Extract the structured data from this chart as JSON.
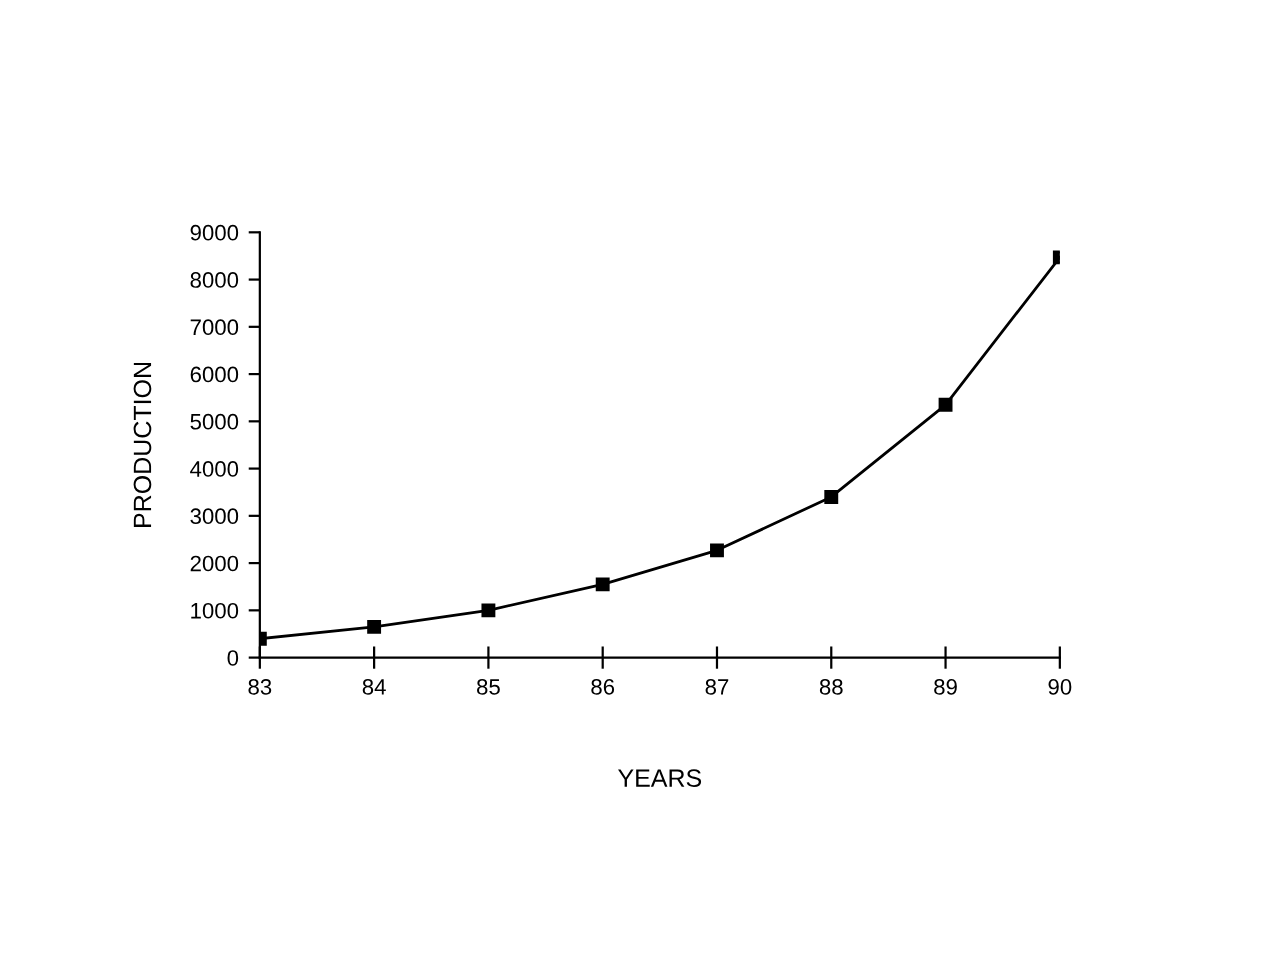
{
  "chart_data": {
    "type": "line",
    "xlabel": "YEARS",
    "ylabel": "PRODUCTION",
    "x": [
      83,
      84,
      85,
      86,
      87,
      88,
      89,
      90
    ],
    "series": [
      {
        "color": "#000000",
        "values": [
          400,
          650,
          1000,
          1550,
          2270,
          3400,
          5350,
          8470
        ]
      }
    ],
    "xlim": [
      83,
      90
    ],
    "xticks": [
      83,
      84,
      85,
      86,
      87,
      88,
      89,
      90
    ],
    "ylim": [
      0,
      9000
    ],
    "yticks": [
      0,
      1000,
      2000,
      3000,
      4000,
      5000,
      6000,
      7000,
      8000,
      9000
    ],
    "marker": "square",
    "line_style": "solid"
  }
}
